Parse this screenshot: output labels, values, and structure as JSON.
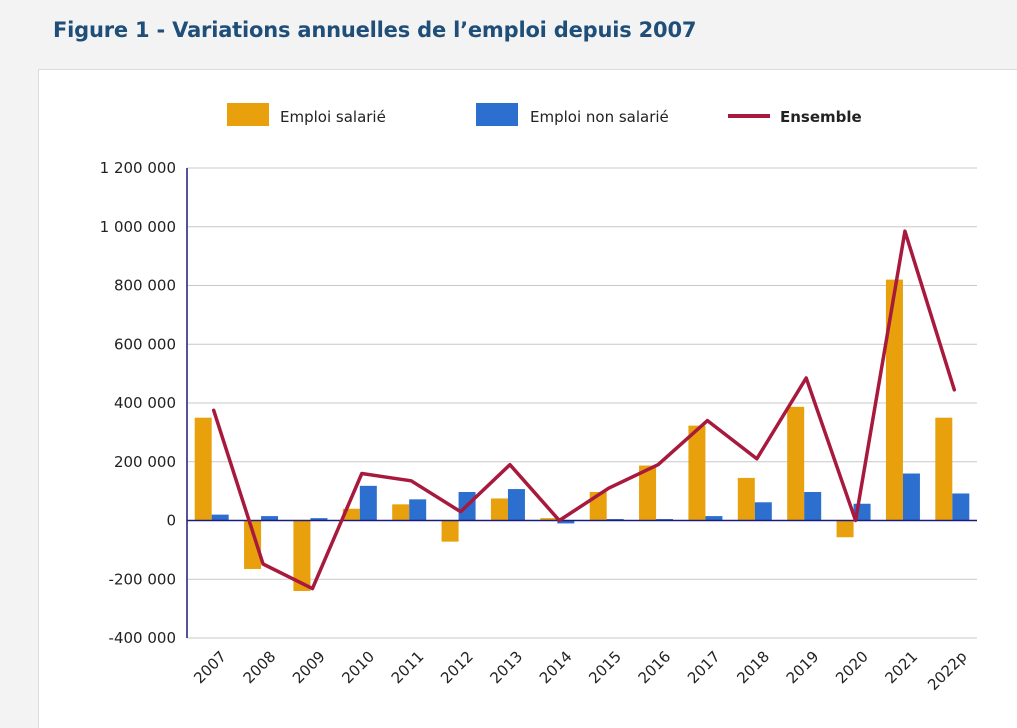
{
  "title": "Figure 1 - Variations annuelles de l’emploi depuis 2007",
  "colors": {
    "salarie": "#e8a10c",
    "non_salarie": "#2c6fcf",
    "ensemble": "#a8193e",
    "axis": "#1c1c7a",
    "grid": "#c8c8c8",
    "title": "#1f4e79"
  },
  "chart_data": {
    "type": "bar",
    "title": "",
    "xlabel": "",
    "ylabel": "",
    "ylim": [
      -400000,
      1200000
    ],
    "yticks": [
      1200000,
      1000000,
      800000,
      600000,
      400000,
      200000,
      0,
      -200000,
      -400000
    ],
    "ytick_labels": [
      "1 200 000",
      "1 000 000",
      "800 000",
      "600 000",
      "400 000",
      "200 000",
      "0",
      "-200 000",
      "-400 000"
    ],
    "grid": true,
    "legend_position": "top",
    "categories": [
      "2007",
      "2008",
      "2009",
      "2010",
      "2011",
      "2012",
      "2013",
      "2014",
      "2015",
      "2016",
      "2017",
      "2018",
      "2019",
      "2020",
      "2021",
      "2022p"
    ],
    "series": [
      {
        "name": "Emploi salarié",
        "kind": "bar",
        "color": "#e8a10c",
        "values": [
          350000,
          -165000,
          -240000,
          40000,
          55000,
          -72000,
          75000,
          8000,
          97000,
          187000,
          323000,
          145000,
          387000,
          -57000,
          820000,
          350000
        ]
      },
      {
        "name": "Emploi non salarié",
        "kind": "bar",
        "color": "#2c6fcf",
        "values": [
          20000,
          15000,
          8000,
          118000,
          72000,
          97000,
          107000,
          -10000,
          5000,
          5000,
          15000,
          62000,
          97000,
          57000,
          160000,
          92000
        ]
      },
      {
        "name": "Ensemble",
        "kind": "line",
        "color": "#a8193e",
        "values": [
          375000,
          -148000,
          -232000,
          160000,
          135000,
          30000,
          190000,
          0,
          110000,
          190000,
          340000,
          210000,
          485000,
          0,
          985000,
          445000
        ]
      }
    ]
  }
}
